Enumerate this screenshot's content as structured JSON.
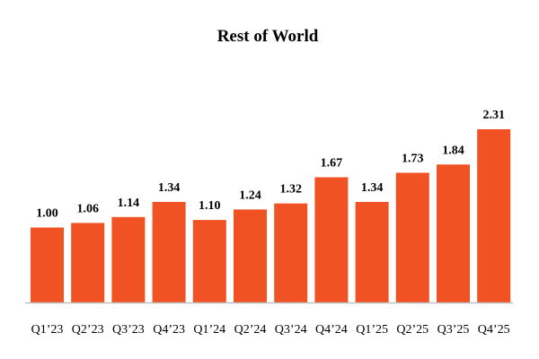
{
  "chart_data": {
    "type": "bar",
    "title": "Rest of World",
    "xlabel": "",
    "ylabel": "",
    "categories": [
      "Q1’23",
      "Q2’23",
      "Q3’23",
      "Q4’23",
      "Q1’24",
      "Q2’24",
      "Q3’24",
      "Q4’24",
      "Q1’25",
      "Q2’25",
      "Q3’25",
      "Q4’25"
    ],
    "values": [
      1.0,
      1.06,
      1.14,
      1.34,
      1.1,
      1.24,
      1.32,
      1.67,
      1.34,
      1.73,
      1.84,
      2.31
    ],
    "value_labels": [
      "1.00",
      "1.06",
      "1.14",
      "1.34",
      "1.10",
      "1.24",
      "1.32",
      "1.67",
      "1.34",
      "1.73",
      "1.84",
      "2.31"
    ],
    "ylim": [
      0,
      2.31
    ],
    "grid": false,
    "legend": "none",
    "bar_color": "#F05223",
    "axis_color": "#BFBFBF"
  }
}
